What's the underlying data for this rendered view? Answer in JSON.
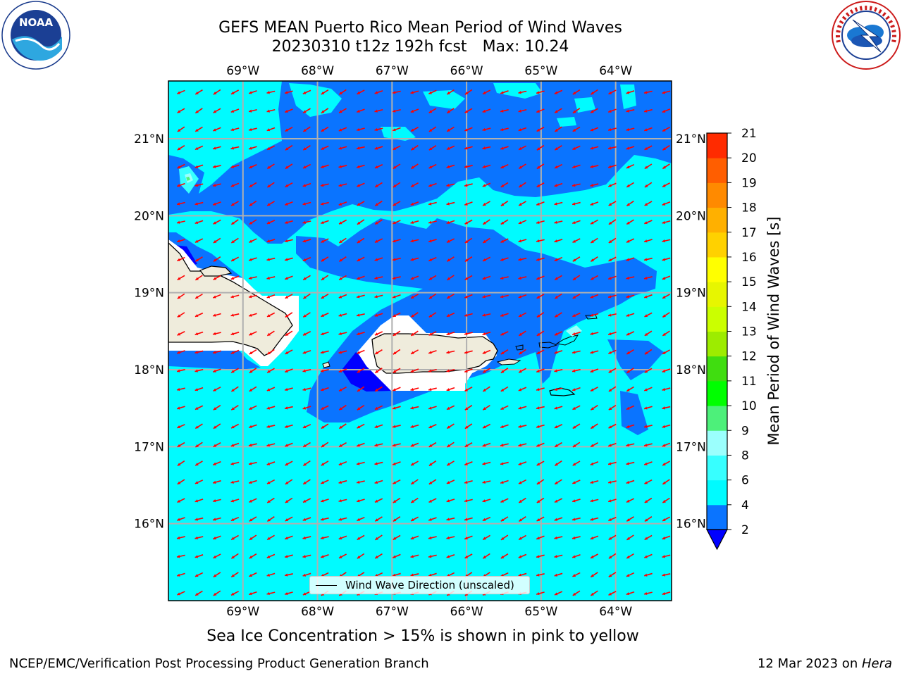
{
  "header": {
    "title_line1": "GEFS MEAN Puerto Rico Mean Period of Wind Waves",
    "title_run": "20230310 t12z 192h fcst",
    "title_max": "Max: 10.24"
  },
  "logos": {
    "noaa": {
      "name": "noaa-logo",
      "text": "NOAA"
    },
    "nws": {
      "name": "nws-logo",
      "text": "NATIONAL WEATHER SERVICE"
    }
  },
  "map": {
    "lon_ticks": [
      "69°W",
      "68°W",
      "67°W",
      "66°W",
      "65°W",
      "64°W"
    ],
    "lat_ticks": [
      "21°N",
      "20°N",
      "19°N",
      "18°N",
      "17°N",
      "16°N"
    ],
    "lon_values": [
      -69,
      -68,
      -67,
      -66,
      -65,
      -64
    ],
    "lat_values": [
      21,
      20,
      19,
      18,
      17,
      16
    ],
    "extent": {
      "lon_min": -70.0,
      "lon_max": -63.25,
      "lat_min": 15.0,
      "lat_max": 21.75
    },
    "wave_direction_arrows": {
      "color": "#ff0000",
      "dominant_heading": "toward southwest"
    },
    "land_color": "#efecdc"
  },
  "colorbar": {
    "label": "Mean Period of Wind Waves [s]",
    "tick_labels": [
      "2",
      "4",
      "6",
      "8",
      "9",
      "10",
      "11",
      "12",
      "13",
      "14",
      "15",
      "16",
      "17",
      "18",
      "19",
      "20",
      "21"
    ],
    "levels": [
      2,
      4,
      6,
      8,
      9,
      10,
      11,
      12,
      13,
      14,
      15,
      16,
      17,
      18,
      19,
      20,
      21
    ],
    "colors": [
      "#0a74ff",
      "#00fbff",
      "#37ffff",
      "#9bfffd",
      "#4df07a",
      "#00ff00",
      "#40dd10",
      "#9dec00",
      "#cbff00",
      "#e7f600",
      "#ffff00",
      "#ffd100",
      "#ffb000",
      "#ff8a00",
      "#ff5e00",
      "#ff2b00",
      "#ff0000"
    ],
    "under_color": "#0000ff"
  },
  "legend": {
    "label": "Wind Wave Direction (unscaled)"
  },
  "notes": {
    "sea_ice": "Sea Ice Concentration > 15% is shown in pink to yellow"
  },
  "footer": {
    "left": "NCEP/EMC/Verification Post Processing Product Generation Branch",
    "date": "12 Mar 2023 on ",
    "machine": "Hera"
  }
}
